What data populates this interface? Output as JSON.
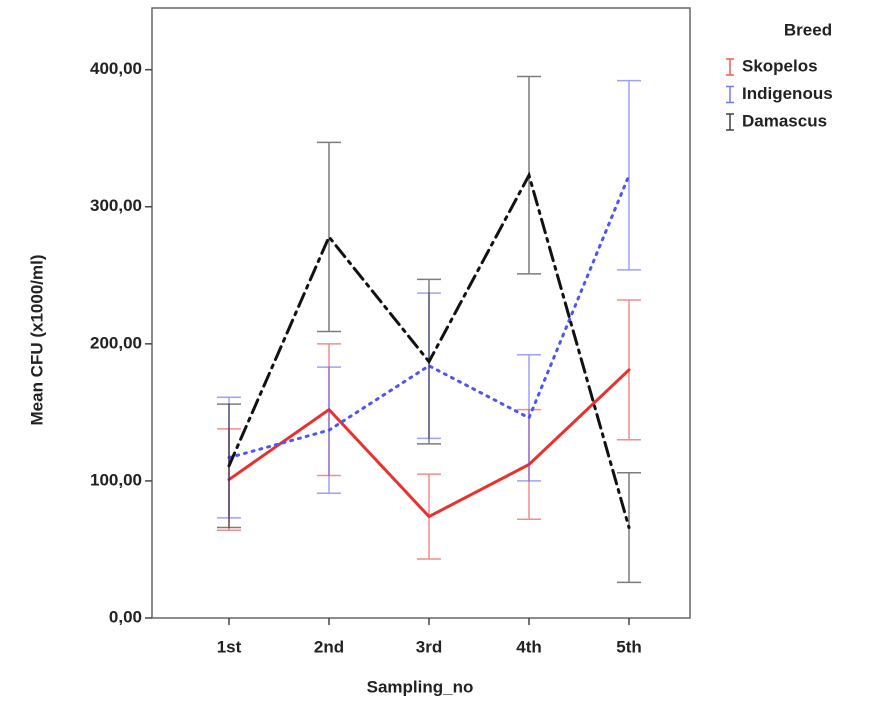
{
  "chart_data": {
    "type": "line",
    "x_label": "Sampling_no",
    "y_label": "Mean CFU (x1000/ml)",
    "legend_title": "Breed",
    "legend": "right",
    "categories": [
      "1st",
      "2nd",
      "3rd",
      "4th",
      "5th"
    ],
    "ylim": [
      0,
      445
    ],
    "yticks": [
      {
        "value": 0,
        "label": "0,00"
      },
      {
        "value": 100,
        "label": "100,00"
      },
      {
        "value": 200,
        "label": "200,00"
      },
      {
        "value": 300,
        "label": "300,00"
      },
      {
        "value": 400,
        "label": "400,00"
      }
    ],
    "series": [
      {
        "name": "Skopelos",
        "color": "#e8322f",
        "line_style": "solid",
        "values": [
          101,
          152,
          74,
          112,
          181
        ],
        "errors": [
          37,
          48,
          31,
          40,
          51
        ]
      },
      {
        "name": "Indigenous",
        "color": "#4f56ef",
        "line_style": "dotted",
        "values": [
          117,
          137,
          184,
          146,
          323
        ],
        "errors": [
          44,
          46,
          53,
          46,
          69
        ]
      },
      {
        "name": "Damascus",
        "color": "#111111",
        "line_style": "dashdot",
        "values": [
          111,
          278,
          187,
          323,
          66
        ],
        "errors": [
          45,
          69,
          60,
          72,
          40
        ]
      }
    ]
  }
}
